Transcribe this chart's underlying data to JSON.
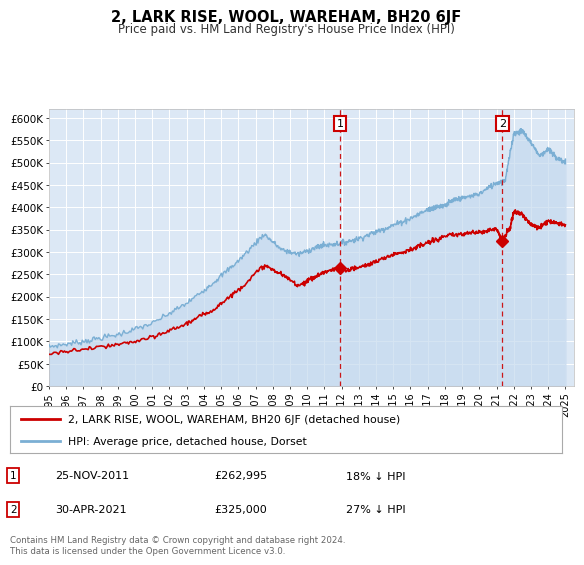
{
  "title": "2, LARK RISE, WOOL, WAREHAM, BH20 6JF",
  "subtitle": "Price paid vs. HM Land Registry's House Price Index (HPI)",
  "background_color": "#ffffff",
  "plot_bg_color": "#dce8f5",
  "grid_color": "#ffffff",
  "hpi_color": "#7bafd4",
  "hpi_fill_color": "#c5d9ee",
  "price_color": "#cc0000",
  "ylim": [
    0,
    620000
  ],
  "yticks": [
    0,
    50000,
    100000,
    150000,
    200000,
    250000,
    300000,
    350000,
    400000,
    450000,
    500000,
    550000,
    600000
  ],
  "ytick_labels": [
    "£0",
    "£50K",
    "£100K",
    "£150K",
    "£200K",
    "£250K",
    "£300K",
    "£350K",
    "£400K",
    "£450K",
    "£500K",
    "£550K",
    "£600K"
  ],
  "sale1_x": 2011.9,
  "sale1_y": 262995,
  "sale2_x": 2021.33,
  "sale2_y": 325000,
  "legend_line1": "2, LARK RISE, WOOL, WAREHAM, BH20 6JF (detached house)",
  "legend_line2": "HPI: Average price, detached house, Dorset",
  "footnote": "Contains HM Land Registry data © Crown copyright and database right 2024.\nThis data is licensed under the Open Government Licence v3.0.",
  "xmin": 1995.0,
  "xmax": 2025.5
}
